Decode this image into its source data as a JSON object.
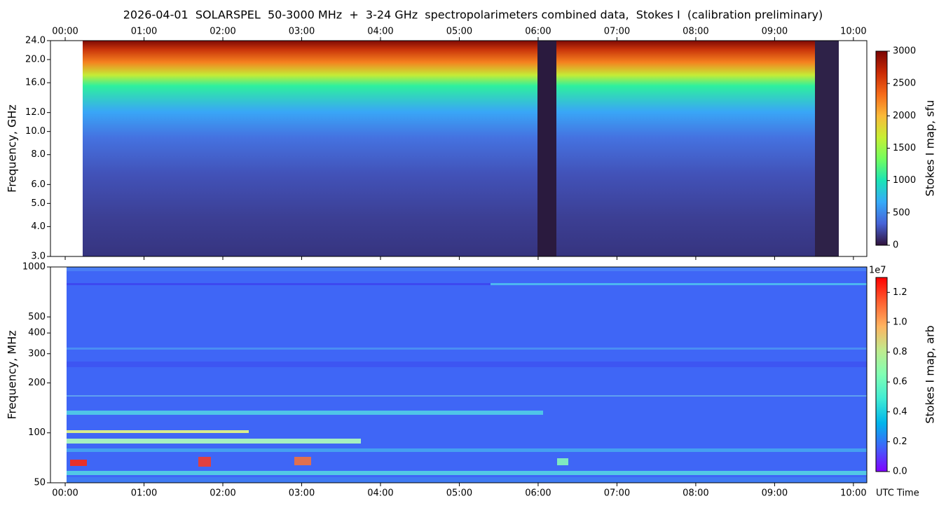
{
  "chart_data": [
    {
      "type": "heatmap",
      "title": "2026-04-01  SOLARSPEL  50-3000 MHz  +  3-24 GHz  spectropolarimeters combined data,  Stokes I  (calibration preliminary)",
      "ylabel": "Frequency, GHz",
      "xlim": [
        -0.187,
        10.17
      ],
      "xticks": [
        {
          "value": 0,
          "label": "00:00"
        },
        {
          "value": 1,
          "label": "01:00"
        },
        {
          "value": 2,
          "label": "02:00"
        },
        {
          "value": 3,
          "label": "03:00"
        },
        {
          "value": 4,
          "label": "04:00"
        },
        {
          "value": 5,
          "label": "05:00"
        },
        {
          "value": 6,
          "label": "06:00"
        },
        {
          "value": 7,
          "label": "07:00"
        },
        {
          "value": 8,
          "label": "08:00"
        },
        {
          "value": 9,
          "label": "09:00"
        },
        {
          "value": 10,
          "label": "10:00"
        }
      ],
      "ylim": [
        3,
        24
      ],
      "yscale": "log",
      "yticks": [
        {
          "value": 3,
          "label": "3.0"
        },
        {
          "value": 4,
          "label": "4.0"
        },
        {
          "value": 5,
          "label": "5.0"
        },
        {
          "value": 6,
          "label": "6.0"
        },
        {
          "value": 8,
          "label": "8.0"
        },
        {
          "value": 10,
          "label": "10.0"
        },
        {
          "value": 12,
          "label": "12.0"
        },
        {
          "value": 16,
          "label": "16.0"
        },
        {
          "value": 20,
          "label": "20.0"
        },
        {
          "value": 24,
          "label": "24.0"
        }
      ],
      "colormap": "turbo",
      "colorbar_label": "Stokes I map, sfu",
      "clim": [
        0,
        3000
      ],
      "cticks": [
        0,
        500,
        1000,
        1500,
        2000,
        2500,
        3000
      ]
    },
    {
      "type": "heatmap",
      "ylabel": "Frequency, MHz",
      "xlabel": "UTC Time",
      "xlim": [
        -0.187,
        10.17
      ],
      "xticks": [
        {
          "value": 0,
          "label": "00:00"
        },
        {
          "value": 1,
          "label": "01:00"
        },
        {
          "value": 2,
          "label": "02:00"
        },
        {
          "value": 3,
          "label": "03:00"
        },
        {
          "value": 4,
          "label": "04:00"
        },
        {
          "value": 5,
          "label": "05:00"
        },
        {
          "value": 6,
          "label": "06:00"
        },
        {
          "value": 7,
          "label": "07:00"
        },
        {
          "value": 8,
          "label": "08:00"
        },
        {
          "value": 9,
          "label": "09:00"
        },
        {
          "value": 10,
          "label": "10:00"
        }
      ],
      "ylim": [
        50,
        1000
      ],
      "yscale": "log",
      "yticks": [
        50,
        100,
        200,
        300,
        400,
        500,
        1000
      ],
      "colormap": "rainbow",
      "colorbar_label": "Stokes I map, arb",
      "colorbar_offset": "1e7",
      "clim": [
        0,
        1.3
      ],
      "cticks": [
        {
          "value": 0,
          "label": "0.0"
        },
        0.2,
        0.4,
        0.6,
        0.8,
        {
          "value": 1,
          "label": "1.0"
        },
        1.2
      ]
    }
  ]
}
